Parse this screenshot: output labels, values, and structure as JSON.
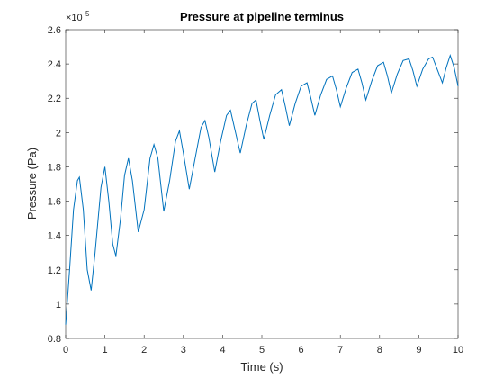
{
  "chart_data": {
    "type": "line",
    "title": "Pressure at pipeline terminus",
    "xlabel": "Time (s)",
    "ylabel": "Pressure (Pa)",
    "y_multiplier": "×10",
    "y_multiplier_exponent": "5",
    "x": [
      0,
      0.1,
      0.2,
      0.3,
      0.35,
      0.45,
      0.55,
      0.65,
      0.75,
      0.9,
      1.0,
      1.1,
      1.2,
      1.28,
      1.4,
      1.5,
      1.6,
      1.7,
      1.85,
      2.0,
      2.15,
      2.25,
      2.35,
      2.5,
      2.65,
      2.8,
      2.9,
      3.0,
      3.15,
      3.3,
      3.45,
      3.55,
      3.65,
      3.8,
      3.95,
      4.1,
      4.2,
      4.3,
      4.45,
      4.6,
      4.75,
      4.85,
      4.95,
      5.05,
      5.2,
      5.35,
      5.5,
      5.6,
      5.7,
      5.85,
      6.0,
      6.15,
      6.25,
      6.35,
      6.5,
      6.65,
      6.8,
      6.9,
      7.0,
      7.15,
      7.3,
      7.45,
      7.55,
      7.65,
      7.8,
      7.95,
      8.1,
      8.2,
      8.3,
      8.45,
      8.6,
      8.75,
      8.85,
      8.95,
      9.1,
      9.25,
      9.35,
      9.45,
      9.6,
      9.7,
      9.8,
      9.9,
      10
    ],
    "series": [
      {
        "color": "#0072bd",
        "values": [
          0.88,
          1.2,
          1.55,
          1.72,
          1.74,
          1.55,
          1.2,
          1.08,
          1.3,
          1.68,
          1.8,
          1.6,
          1.35,
          1.28,
          1.5,
          1.75,
          1.85,
          1.72,
          1.42,
          1.55,
          1.85,
          1.93,
          1.85,
          1.54,
          1.72,
          1.95,
          2.01,
          1.88,
          1.67,
          1.85,
          2.03,
          2.07,
          1.97,
          1.77,
          1.95,
          2.1,
          2.13,
          2.03,
          1.88,
          2.04,
          2.17,
          2.19,
          2.07,
          1.96,
          2.1,
          2.22,
          2.25,
          2.15,
          2.04,
          2.17,
          2.27,
          2.29,
          2.2,
          2.1,
          2.22,
          2.31,
          2.33,
          2.25,
          2.15,
          2.26,
          2.35,
          2.37,
          2.29,
          2.19,
          2.3,
          2.39,
          2.41,
          2.33,
          2.23,
          2.34,
          2.42,
          2.43,
          2.36,
          2.27,
          2.37,
          2.43,
          2.44,
          2.38,
          2.29,
          2.38,
          2.45,
          2.38,
          2.27
        ]
      }
    ],
    "xlim": [
      0,
      10
    ],
    "xticks": [
      0,
      1,
      2,
      3,
      4,
      5,
      6,
      7,
      8,
      9,
      10
    ],
    "ylim": [
      0.8,
      2.6
    ],
    "yticks": [
      0.8,
      1,
      1.2,
      1.4,
      1.6,
      1.8,
      2,
      2.2,
      2.4,
      2.6
    ],
    "grid": false
  }
}
